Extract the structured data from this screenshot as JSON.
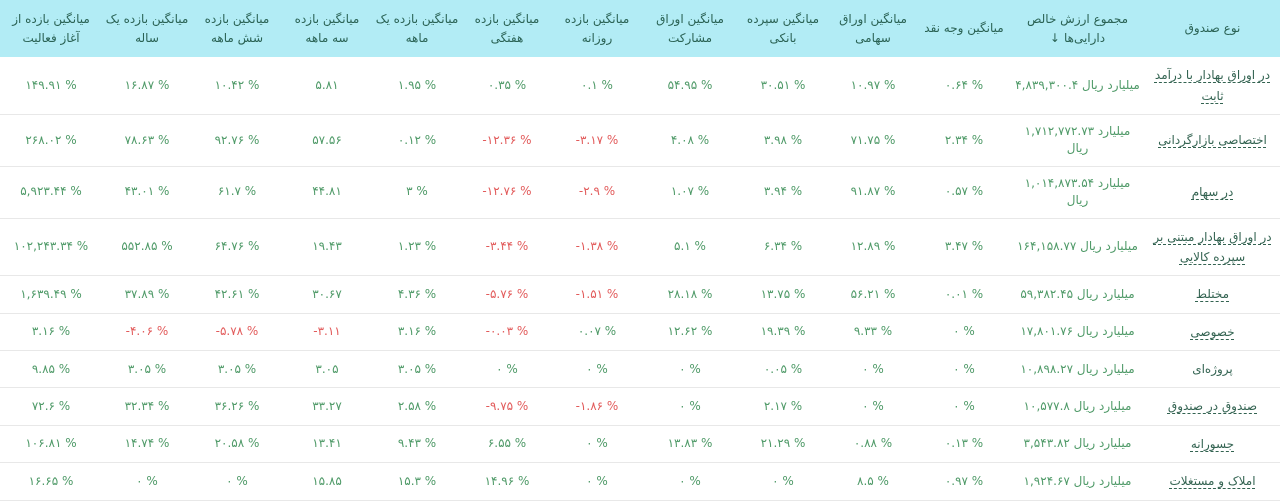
{
  "colors": {
    "header_bg": "#b2ecf5",
    "header_text": "#2a6254",
    "positive_value": "#4f9a68",
    "negative_value": "#e25b5b",
    "fund_link": "#336351",
    "row_border": "#e8e8e8"
  },
  "table": {
    "sort_icon": "↓",
    "unit_suffix": "میلیارد ریال",
    "columns": [
      {
        "key": "name",
        "label": "نوع صندوق"
      },
      {
        "key": "nav",
        "label": "مجموع ارزش خالص دارایی‌ها"
      },
      {
        "key": "cash",
        "label": "میانگین وجه نقد"
      },
      {
        "key": "stock",
        "label": "میانگین اوراق سهامی"
      },
      {
        "key": "bank",
        "label": "میانگین سپرده بانکی"
      },
      {
        "key": "bond",
        "label": "میانگین اوراق مشارکت"
      },
      {
        "key": "daily",
        "label": "میانگین بازده روزانه"
      },
      {
        "key": "weekly",
        "label": "میانگین بازده هفتگی"
      },
      {
        "key": "m1",
        "label": "میانگین بازده یک ماهه"
      },
      {
        "key": "m3",
        "label": "میانگین بازده سه ماهه"
      },
      {
        "key": "m6",
        "label": "میانگین بازده شش ماهه"
      },
      {
        "key": "y1",
        "label": "میانگین بازده یک ساله"
      },
      {
        "key": "inception",
        "label": "میانگین بازده از آغاز فعالیت"
      }
    ],
    "rows": [
      {
        "name": "در اوراق بهادار با درآمد ثابت",
        "link": true,
        "nav": "۴,۸۳۹,۳۰۰.۴",
        "cash": "۰.۶۴ %",
        "stock": "۱۰.۹۷ %",
        "bank": "۳۰.۵۱ %",
        "bond": "۵۴.۹۵ %",
        "daily": "۰.۱ %",
        "weekly": "۰.۳۵ %",
        "m1": "۱.۹۵ %",
        "m3": "۵.۸۱",
        "m6": "۱۰.۴۲ %",
        "y1": "۱۶.۸۷ %",
        "inception": "۱۴۹.۹۱ %"
      },
      {
        "name": "اختصاصی بازارگردانی",
        "link": true,
        "nav": "۱,۷۱۲,۷۷۲.۷۳",
        "cash": "۲.۳۴ %",
        "stock": "۷۱.۷۵ %",
        "bank": "۳.۹۸ %",
        "bond": "۴.۰۸ %",
        "daily": "-۳.۱۷ %",
        "weekly": "-۱۲.۳۶ %",
        "m1": "۰.۱۲ %",
        "m3": "۵۷.۵۶",
        "m6": "۹۲.۷۶ %",
        "y1": "۷۸.۶۳ %",
        "inception": "۲۶۸.۰۲ %"
      },
      {
        "name": "در سهام",
        "link": true,
        "nav": "۱,۰۱۴,۸۷۳.۵۴",
        "cash": "۰.۵۷ %",
        "stock": "۹۱.۸۷ %",
        "bank": "۳.۹۴ %",
        "bond": "۱.۰۷ %",
        "daily": "-۲.۹ %",
        "weekly": "-۱۲.۷۶ %",
        "m1": "۳ %",
        "m3": "۴۴.۸۱",
        "m6": "۶۱.۷ %",
        "y1": "۴۳.۰۱ %",
        "inception": "۵,۹۲۳.۴۴ %"
      },
      {
        "name": "در اوراق بهادار مبتنی بر سپرده کالایی",
        "link": true,
        "nav": "۱۶۴,۱۵۸.۷۷",
        "cash": "۳.۴۷ %",
        "stock": "۱۲.۸۹ %",
        "bank": "۶.۳۴ %",
        "bond": "۵.۱ %",
        "daily": "-۱.۳۸ %",
        "weekly": "-۳.۴۴ %",
        "m1": "۱.۲۳ %",
        "m3": "۱۹.۴۳",
        "m6": "۶۴.۷۶ %",
        "y1": "۵۵۲.۸۵ %",
        "inception": "۱۰۲,۲۴۳.۳۴ %"
      },
      {
        "name": "مختلط",
        "link": true,
        "nav": "۵۹,۳۸۲.۴۵",
        "cash": "۰.۰۱ %",
        "stock": "۵۶.۲۱ %",
        "bank": "۱۳.۷۵ %",
        "bond": "۲۸.۱۸ %",
        "daily": "-۱.۵۱ %",
        "weekly": "-۵.۷۶ %",
        "m1": "۴.۳۶ %",
        "m3": "۳۰.۶۷",
        "m6": "۴۲.۶۱ %",
        "y1": "۳۷.۸۹ %",
        "inception": "۱,۶۳۹.۴۹ %"
      },
      {
        "name": "خصوصی",
        "link": true,
        "nav": "۱۷,۸۰۱.۷۶",
        "cash": "۰ %",
        "stock": "۹.۳۳ %",
        "bank": "۱۹.۳۹ %",
        "bond": "۱۲.۶۲ %",
        "daily": "۰.۰۷ %",
        "weekly": "-۰.۰۳ %",
        "m1": "۳.۱۶ %",
        "m3": "-۳.۱۱",
        "m6": "-۵.۷۸ %",
        "y1": "-۴.۰۶ %",
        "inception": "۳.۱۶ %"
      },
      {
        "name": "پروژه‌ای",
        "link": false,
        "nav": "۱۰,۸۹۸.۲۷",
        "cash": "۰ %",
        "stock": "۰ %",
        "bank": "۰.۰۵ %",
        "bond": "۰ %",
        "daily": "۰ %",
        "weekly": "۰ %",
        "m1": "۳.۰۵ %",
        "m3": "۳.۰۵",
        "m6": "۳.۰۵ %",
        "y1": "۳.۰۵ %",
        "inception": "۹.۸۵ %"
      },
      {
        "name": "صندوق در صندوق",
        "link": true,
        "nav": "۱۰,۵۷۷.۸",
        "cash": "۰ %",
        "stock": "۰ %",
        "bank": "۲.۱۷ %",
        "bond": "۰ %",
        "daily": "-۱.۸۶ %",
        "weekly": "-۹.۷۵ %",
        "m1": "۲.۵۸ %",
        "m3": "۳۳.۲۷",
        "m6": "۳۶.۲۶ %",
        "y1": "۳۲.۳۴ %",
        "inception": "۷۲.۶ %"
      },
      {
        "name": "جسورانه",
        "link": true,
        "nav": "۳,۵۴۳.۸۲",
        "cash": "۰.۱۳ %",
        "stock": "۰.۸۸ %",
        "bank": "۲۱.۲۹ %",
        "bond": "۱۳.۸۳ %",
        "daily": "۰ %",
        "weekly": "۶.۵۵ %",
        "m1": "۹.۴۳ %",
        "m3": "۱۳.۴۱",
        "m6": "۲۰.۵۸ %",
        "y1": "۱۴.۷۴ %",
        "inception": "۱۰۶.۸۱ %"
      },
      {
        "name": "املاک و مستغلات",
        "link": true,
        "nav": "۱,۹۲۴.۶۷",
        "cash": "۰.۹۷ %",
        "stock": "۸.۵ %",
        "bank": "۰ %",
        "bond": "۰ %",
        "daily": "۰ %",
        "weekly": "۱۴.۹۶ %",
        "m1": "۱۵.۳ %",
        "m3": "۱۵.۸۵",
        "m6": "۰ %",
        "y1": "۰ %",
        "inception": "۱۶.۶۵ %"
      }
    ]
  }
}
